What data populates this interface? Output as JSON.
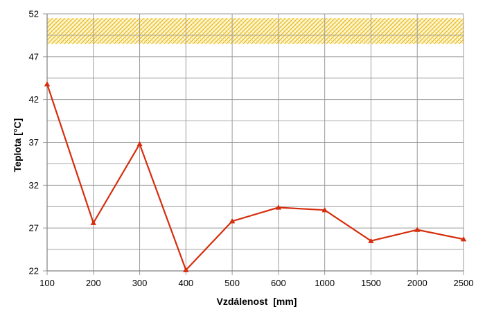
{
  "chart_data": {
    "type": "line",
    "title": "",
    "xlabel": "Vzdálenost  [mm]",
    "ylabel": "Teplota [°C]",
    "categories": [
      "100",
      "200",
      "300",
      "400",
      "500",
      "600",
      "1000",
      "1500",
      "2000",
      "2500"
    ],
    "series": [
      {
        "values": [
          43.8,
          27.6,
          36.8,
          22.1,
          27.8,
          29.4,
          29.1,
          25.5,
          26.8,
          25.7
        ],
        "color": "#d62d0c",
        "marker": "triangle"
      }
    ],
    "ylim": [
      22,
      52
    ],
    "yticks": [
      "22",
      "27",
      "32",
      "37",
      "42",
      "47",
      "52"
    ],
    "grid": true,
    "band": {
      "from": 48.5,
      "to": 51.5,
      "color": "#f2cc2e",
      "pattern": "crosshatch"
    }
  }
}
